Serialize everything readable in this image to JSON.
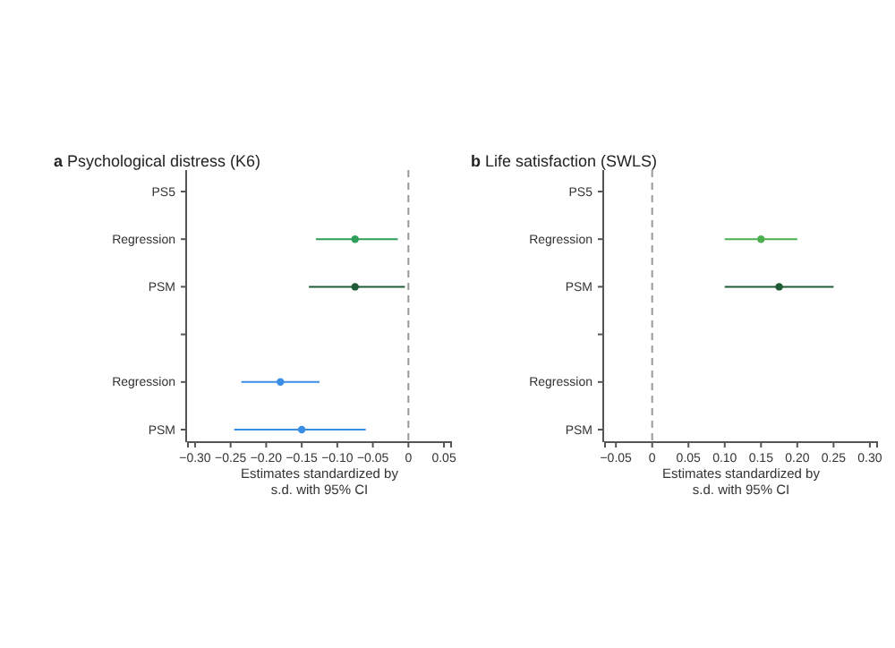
{
  "chart_data": [
    {
      "type": "scatter",
      "orientation": "horizontal",
      "title": "Psychological distress (K6)",
      "annotations": [
        "a"
      ],
      "xlabel": "Estimates standardized by\ns.d. with 95% CI",
      "categories": [
        "PS5",
        "Regression",
        "PSM",
        null,
        "Regression",
        "PSM"
      ],
      "xlim": [
        -0.31,
        0.06
      ],
      "xticks": [
        {
          "value": -0.3,
          "label": "−0.30"
        },
        {
          "value": -0.25,
          "label": "−0.25"
        },
        {
          "value": -0.2,
          "label": "−0.20"
        },
        {
          "value": -0.15,
          "label": "−0.15"
        },
        {
          "value": -0.1,
          "label": "−0.10"
        },
        {
          "value": -0.05,
          "label": "−0.05"
        },
        0,
        0.05
      ],
      "marker": "circle",
      "grid": false,
      "ref_lines": [
        {
          "axis": "x",
          "value": 0,
          "line_style": "dashed",
          "color": "#999999"
        }
      ],
      "series": [
        {
          "color": "#2e9e5b",
          "values": [
            null,
            -0.075,
            null,
            null,
            null,
            null
          ],
          "errors": [
            null,
            [
              -0.13,
              -0.015
            ],
            null,
            null,
            null,
            null
          ]
        },
        {
          "color": "#1f5c35",
          "values": [
            null,
            null,
            -0.075,
            null,
            null,
            null
          ],
          "errors": [
            null,
            null,
            [
              -0.14,
              -0.005
            ],
            null,
            null,
            null
          ]
        },
        {
          "color": "#3a8ee6",
          "values": [
            null,
            null,
            null,
            null,
            -0.18,
            -0.15
          ],
          "errors": [
            null,
            null,
            null,
            null,
            [
              -0.235,
              -0.125
            ],
            [
              -0.245,
              -0.06
            ]
          ]
        }
      ]
    },
    {
      "type": "scatter",
      "orientation": "horizontal",
      "title": "Life satisfaction (SWLS)",
      "annotations": [
        "b"
      ],
      "xlabel": "Estimates standardized by\ns.d. with 95% CI",
      "categories": [
        "PS5",
        "Regression",
        "PSM",
        null,
        "Regression",
        "PSM"
      ],
      "xlim": [
        -0.065,
        0.31
      ],
      "xticks": [
        {
          "value": -0.05,
          "label": "−0.05"
        },
        0,
        0.05,
        {
          "value": 0.1,
          "label": "0.10"
        },
        0.15,
        {
          "value": 0.2,
          "label": "0.20"
        },
        0.25,
        {
          "value": 0.3,
          "label": "0.30"
        }
      ],
      "marker": "circle",
      "grid": false,
      "ref_lines": [
        {
          "axis": "x",
          "value": 0,
          "line_style": "dashed",
          "color": "#999999"
        }
      ],
      "series": [
        {
          "color": "#4cb050",
          "values": [
            null,
            0.15,
            null,
            null,
            null,
            null
          ],
          "errors": [
            null,
            [
              0.1,
              0.2
            ],
            null,
            null,
            null,
            null
          ]
        },
        {
          "color": "#1f5c35",
          "values": [
            null,
            null,
            0.175,
            null,
            null,
            null
          ],
          "errors": [
            null,
            null,
            [
              0.1,
              0.25
            ],
            null,
            null,
            null
          ]
        }
      ]
    }
  ]
}
